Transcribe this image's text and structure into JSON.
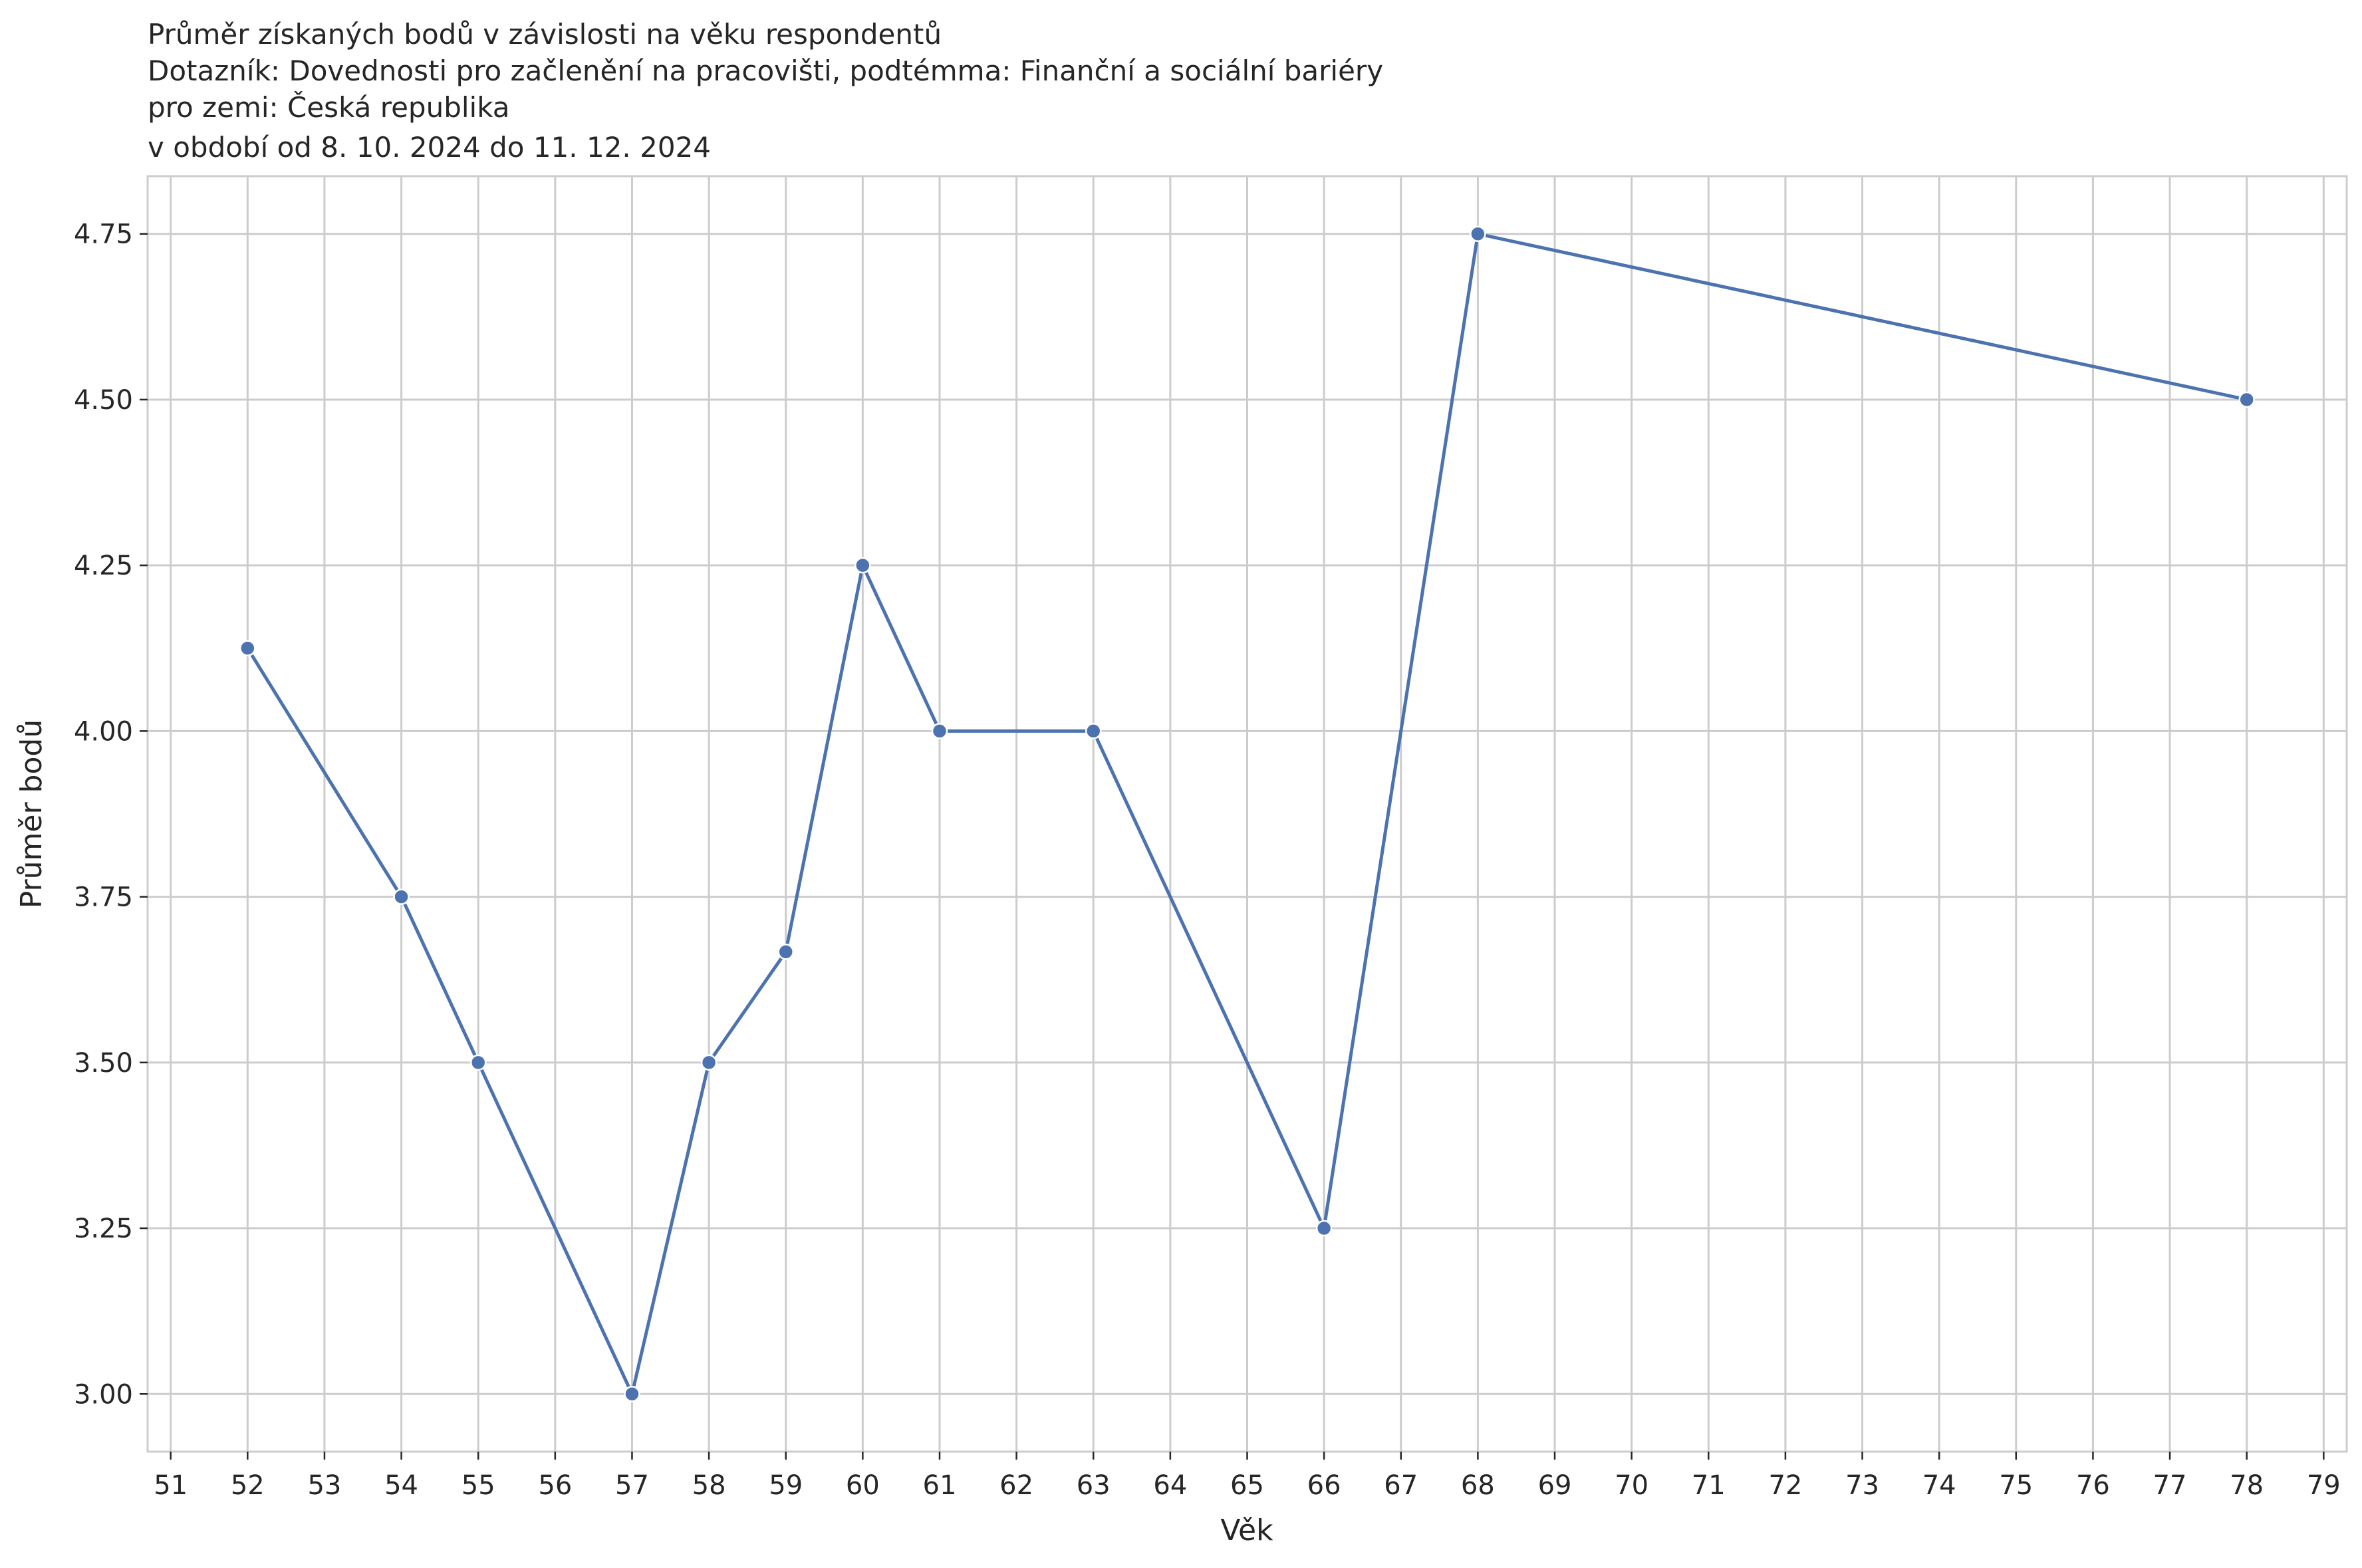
{
  "chart_data": {
    "type": "line",
    "title_lines": [
      "Průměr získaných bodů v závislosti na věku respondentů",
      "Dotazník: Dovednosti pro začlenění na pracovišti, podtémma: Finanční a sociální bariéry",
      "pro zemi: Česká republika",
      "v období od 8. 10. 2024 do 11. 12. 2024"
    ],
    "xlabel": "Věk",
    "ylabel": "Průměr bodů",
    "x": [
      52,
      54,
      55,
      57,
      58,
      59,
      60,
      61,
      63,
      66,
      68,
      78
    ],
    "y": [
      4.125,
      3.75,
      3.5,
      3.0,
      3.5,
      3.667,
      4.25,
      4.0,
      4.0,
      3.25,
      4.75,
      4.5
    ],
    "xlim": [
      50.7,
      79.3
    ],
    "ylim": [
      2.913,
      4.837
    ],
    "x_ticks": [
      "51",
      "52",
      "53",
      "54",
      "55",
      "56",
      "57",
      "58",
      "59",
      "60",
      "61",
      "62",
      "63",
      "64",
      "65",
      "66",
      "67",
      "68",
      "69",
      "70",
      "71",
      "72",
      "73",
      "74",
      "75",
      "76",
      "77",
      "78",
      "79"
    ],
    "y_ticks": [
      "3.00",
      "3.25",
      "3.50",
      "3.75",
      "4.00",
      "4.25",
      "4.50",
      "4.75"
    ],
    "grid": true,
    "line_color": "#4c72b0",
    "grid_color": "#cccccc"
  }
}
